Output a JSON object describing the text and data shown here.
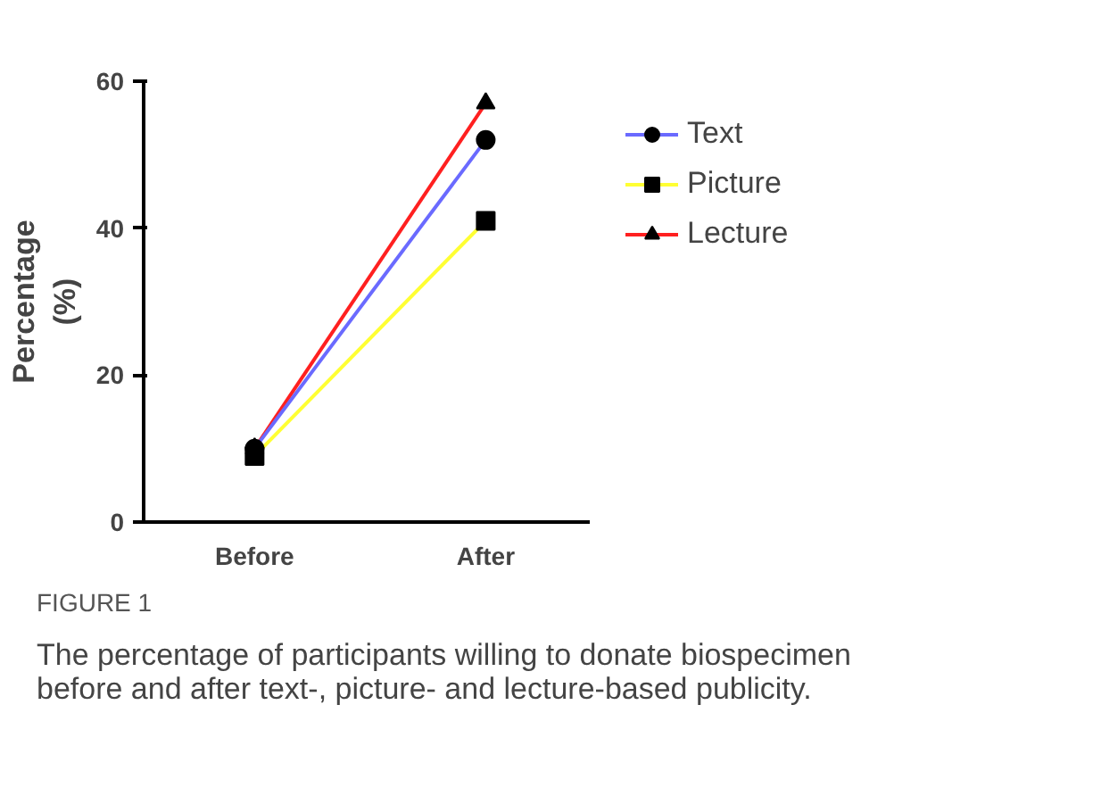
{
  "chart_data": {
    "type": "line",
    "categories": [
      "Before",
      "After"
    ],
    "ylabel": "Percentage\n(%)",
    "ylim": [
      0,
      60
    ],
    "yticks": [
      0,
      20,
      40,
      60
    ],
    "grid": false,
    "legend": "top right",
    "series": [
      {
        "name": "Text",
        "color": "#6a6aff",
        "marker": "circle",
        "values": [
          10,
          52
        ]
      },
      {
        "name": "Picture",
        "color": "#ffff33",
        "marker": "square",
        "values": [
          9,
          41
        ]
      },
      {
        "name": "Lecture",
        "color": "#ff2020",
        "marker": "triangle",
        "values": [
          10,
          57
        ]
      }
    ],
    "annotations": [
      "FIGURE 1",
      "The percentage of participants willing to donate biospecimen\nbefore and after text-, picture- and lecture-based publicity."
    ]
  }
}
